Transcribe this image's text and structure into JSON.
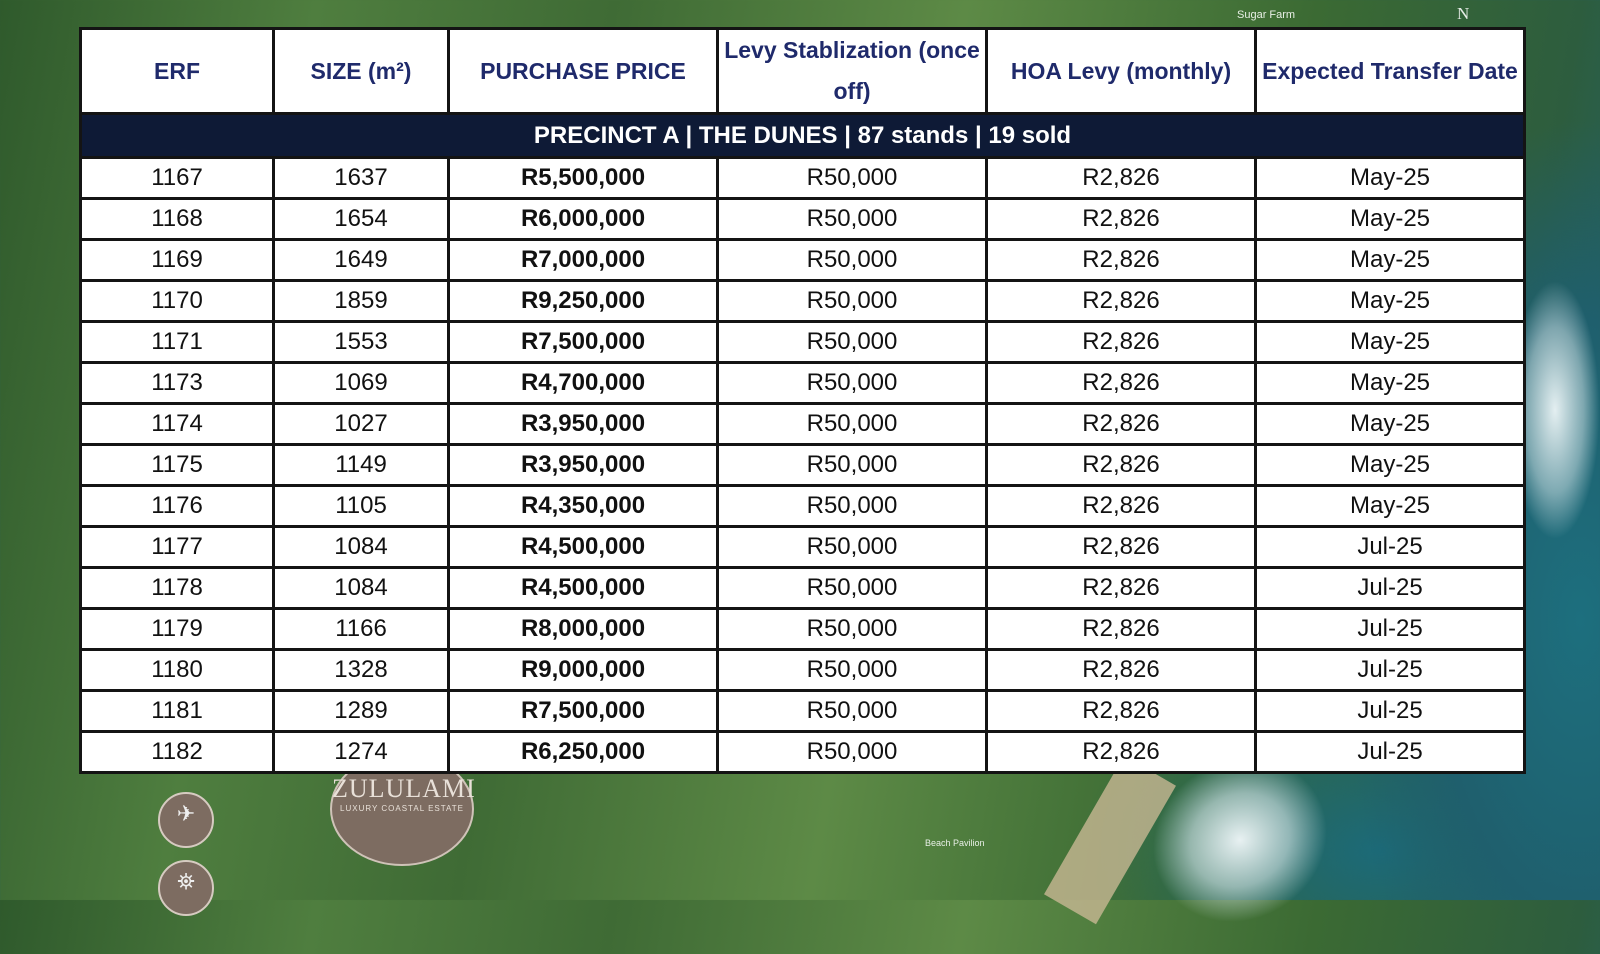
{
  "map": {
    "labels": {
      "sugar_farm": "Sugar Farm",
      "north": "N",
      "beach_pavilion": "Beach Pavilion"
    },
    "logo": {
      "name": "ZULULAMI",
      "tagline": "LUXURY COASTAL ESTATE"
    },
    "icons": [
      "airplane-icon",
      "lighthouse-icon"
    ]
  },
  "table": {
    "headers": [
      "ERF",
      "SIZE (m²)",
      "PURCHASE PRICE",
      "Levy Stablization (once off)",
      "HOA Levy (monthly)",
      "Expected Transfer Date"
    ],
    "section": "PRECINCT A | THE DUNES | 87 stands | 19 sold",
    "rows": [
      [
        "1167",
        "1637",
        "R5,500,000",
        "R50,000",
        "R2,826",
        "May-25"
      ],
      [
        "1168",
        "1654",
        "R6,000,000",
        "R50,000",
        "R2,826",
        "May-25"
      ],
      [
        "1169",
        "1649",
        "R7,000,000",
        "R50,000",
        "R2,826",
        "May-25"
      ],
      [
        "1170",
        "1859",
        "R9,250,000",
        "R50,000",
        "R2,826",
        "May-25"
      ],
      [
        "1171",
        "1553",
        "R7,500,000",
        "R50,000",
        "R2,826",
        "May-25"
      ],
      [
        "1173",
        "1069",
        "R4,700,000",
        "R50,000",
        "R2,826",
        "May-25"
      ],
      [
        "1174",
        "1027",
        "R3,950,000",
        "R50,000",
        "R2,826",
        "May-25"
      ],
      [
        "1175",
        "1149",
        "R3,950,000",
        "R50,000",
        "R2,826",
        "May-25"
      ],
      [
        "1176",
        "1105",
        "R4,350,000",
        "R50,000",
        "R2,826",
        "May-25"
      ],
      [
        "1177",
        "1084",
        "R4,500,000",
        "R50,000",
        "R2,826",
        "Jul-25"
      ],
      [
        "1178",
        "1084",
        "R4,500,000",
        "R50,000",
        "R2,826",
        "Jul-25"
      ],
      [
        "1179",
        "1166",
        "R8,000,000",
        "R50,000",
        "R2,826",
        "Jul-25"
      ],
      [
        "1180",
        "1328",
        "R9,000,000",
        "R50,000",
        "R2,826",
        "Jul-25"
      ],
      [
        "1181",
        "1289",
        "R7,500,000",
        "R50,000",
        "R2,826",
        "Jul-25"
      ],
      [
        "1182",
        "1274",
        "R6,250,000",
        "R50,000",
        "R2,826",
        "Jul-25"
      ]
    ]
  }
}
